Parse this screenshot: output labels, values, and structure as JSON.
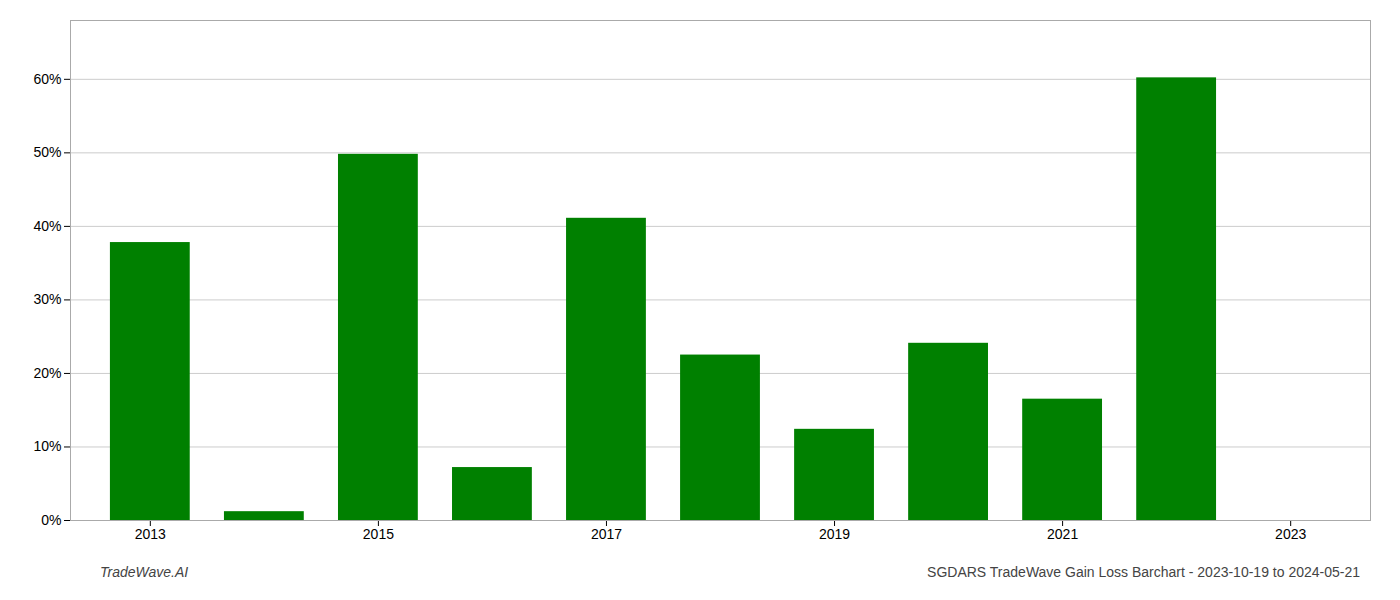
{
  "chart_data": {
    "type": "bar",
    "x": [
      2013,
      2014,
      2015,
      2016,
      2017,
      2018,
      2019,
      2020,
      2021,
      2022,
      2023
    ],
    "values": [
      0.378,
      0.012,
      0.498,
      0.072,
      0.411,
      0.225,
      0.124,
      0.241,
      0.165,
      0.602,
      0.0
    ],
    "color": "#008000",
    "xlim": [
      2012.3,
      2023.7
    ],
    "xticks": [
      2013,
      2015,
      2017,
      2019,
      2021,
      2023
    ],
    "ylim": [
      0.0,
      0.68
    ],
    "yticks": [
      {
        "value": 0.0,
        "label": "0%"
      },
      {
        "value": 0.1,
        "label": "10%"
      },
      {
        "value": 0.2,
        "label": "20%"
      },
      {
        "value": 0.3,
        "label": "30%"
      },
      {
        "value": 0.4,
        "label": "40%"
      },
      {
        "value": 0.5,
        "label": "50%"
      },
      {
        "value": 0.6,
        "label": "60%"
      }
    ],
    "grid": true,
    "annotations": [
      "TradeWave.AI",
      "SGDARS TradeWave Gain Loss Barchart - 2023-10-19 to 2024-05-21"
    ]
  }
}
